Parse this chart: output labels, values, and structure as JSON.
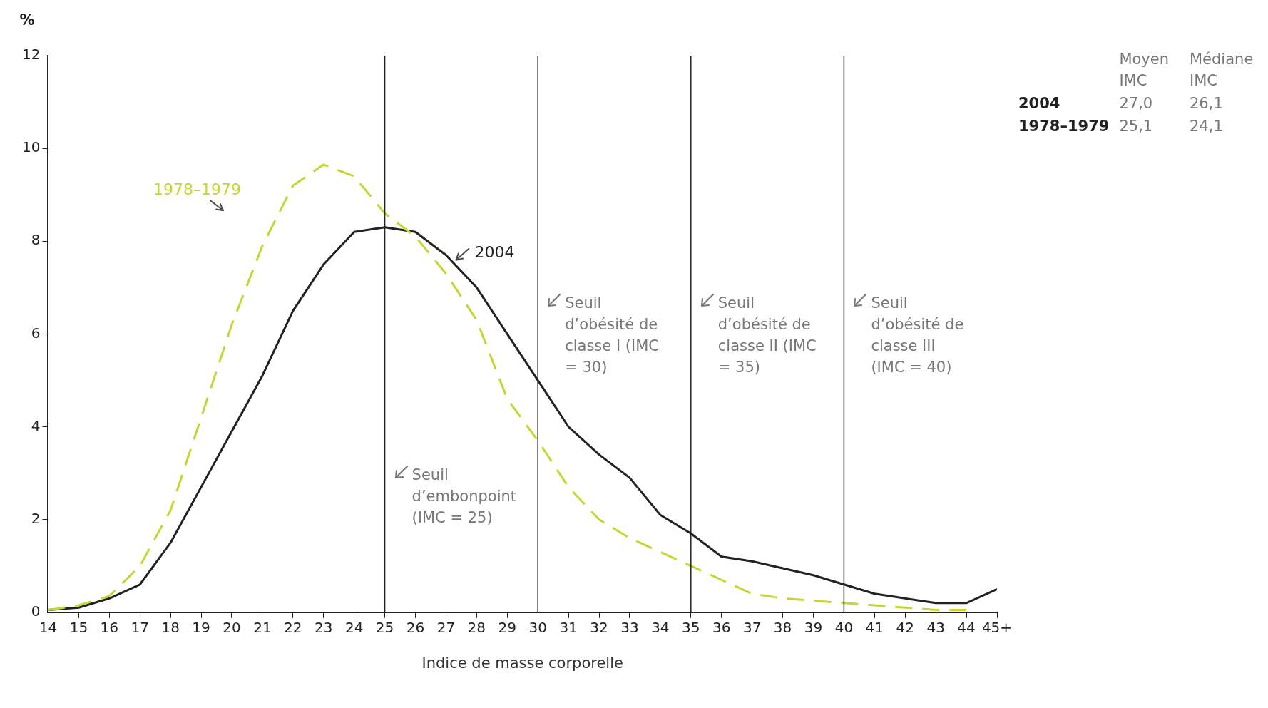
{
  "chart_data": {
    "type": "line",
    "xlabel": "Indice de masse corporelle",
    "ylabel": "%",
    "categories": [
      "14",
      "15",
      "16",
      "17",
      "18",
      "19",
      "20",
      "21",
      "22",
      "23",
      "24",
      "25",
      "26",
      "27",
      "28",
      "29",
      "30",
      "31",
      "32",
      "33",
      "34",
      "35",
      "36",
      "37",
      "38",
      "39",
      "40",
      "41",
      "42",
      "43",
      "44",
      "45+"
    ],
    "series": [
      {
        "name": "1978–1979",
        "color": "#c5d631",
        "line_style": "dashed",
        "values": [
          0.05,
          0.15,
          0.35,
          1.0,
          2.2,
          4.2,
          6.2,
          7.9,
          9.2,
          9.65,
          9.4,
          8.6,
          8.1,
          7.3,
          6.3,
          4.6,
          3.7,
          2.7,
          2.0,
          1.6,
          1.3,
          1.0,
          0.7,
          0.4,
          0.3,
          0.25,
          0.2,
          0.15,
          0.1,
          0.05,
          0.05,
          null
        ]
      },
      {
        "name": "2004",
        "color": "#222222",
        "line_style": "solid",
        "values": [
          0.05,
          0.1,
          0.3,
          0.6,
          1.5,
          2.7,
          3.9,
          5.1,
          6.5,
          7.5,
          8.2,
          8.3,
          8.2,
          7.7,
          7.0,
          6.0,
          5.0,
          4.0,
          3.4,
          2.9,
          2.1,
          1.7,
          1.2,
          1.1,
          0.95,
          0.8,
          0.6,
          0.4,
          0.3,
          0.2,
          0.2,
          0.5
        ]
      }
    ],
    "ylim": [
      0,
      12
    ],
    "yticks": [
      0,
      2,
      4,
      6,
      8,
      10,
      12
    ],
    "grid": false,
    "legend": false,
    "marker": "none",
    "ref_lines": [
      {
        "axis": "x",
        "value": "25",
        "label": "Seuil d’embonpoint (IMC = 25)",
        "color": "#222222"
      },
      {
        "axis": "x",
        "value": "30",
        "label": "Seuil d’obésité de classe I (IMC = 30)",
        "color": "#222222"
      },
      {
        "axis": "x",
        "value": "35",
        "label": "Seuil d’obésité de classe II (IMC = 35)",
        "color": "#222222"
      },
      {
        "axis": "x",
        "value": "40",
        "label": "Seuil d’obésité de classe III (IMC = 40)",
        "color": "#222222"
      }
    ],
    "annotations": [
      "Moyen IMC",
      "Médiane IMC",
      "2004",
      "27,0",
      "26,1",
      "1978–1979",
      "25,1",
      "24,1"
    ]
  }
}
